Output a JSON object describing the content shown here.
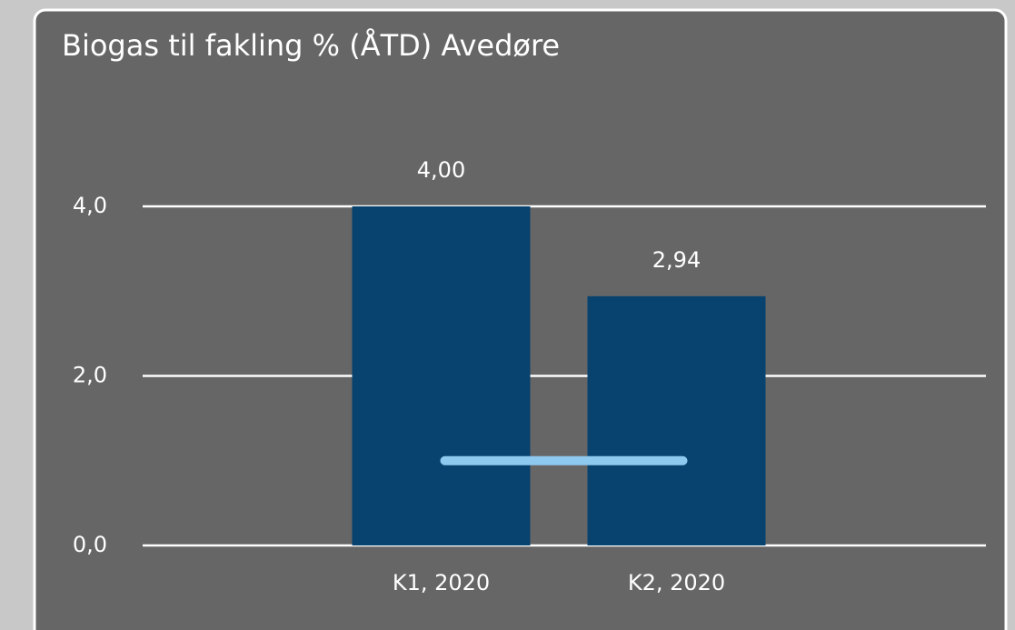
{
  "chart_data": {
    "type": "bar",
    "title": "Biogas til fakling % (ÅTD) Avedøre",
    "categories": [
      "K1, 2020",
      "K2, 2020"
    ],
    "series": [
      {
        "type": "bar",
        "color": "#08426f",
        "values": [
          4.0,
          2.94
        ],
        "value_labels": [
          "4,00",
          "2,94"
        ]
      },
      {
        "type": "line",
        "color": "#8ec9f0",
        "values": [
          1.0,
          1.0
        ]
      }
    ],
    "ylim": [
      0,
      4
    ],
    "yticks": [
      {
        "value": 0,
        "label": "0,0"
      },
      {
        "value": 2,
        "label": "2,0"
      },
      {
        "value": 4,
        "label": "4,0"
      }
    ],
    "grid": true
  }
}
